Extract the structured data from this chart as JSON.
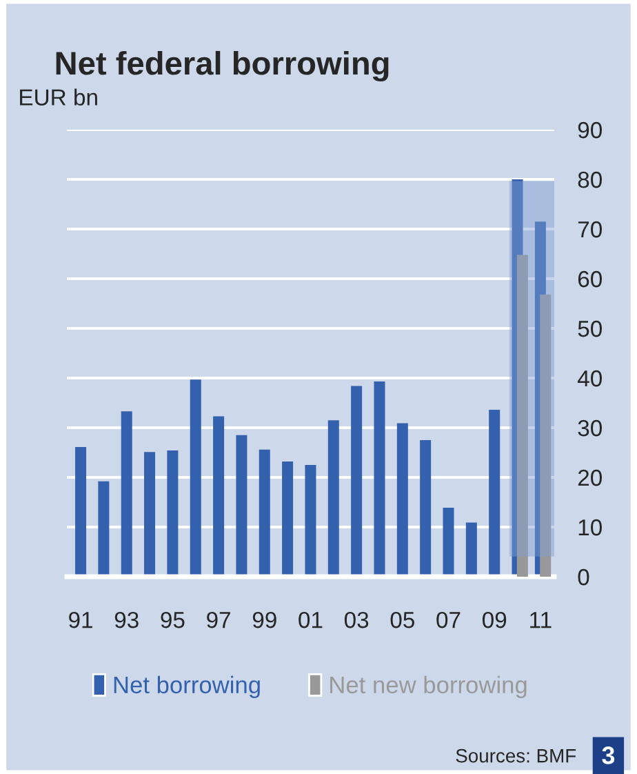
{
  "chart_data": {
    "type": "bar",
    "title": "Net federal borrowing",
    "ylabel": "EUR bn",
    "categories": [
      "91",
      null,
      "93",
      null,
      "95",
      null,
      "97",
      null,
      "99",
      null,
      "01",
      null,
      "03",
      null,
      "05",
      null,
      "07",
      null,
      "09",
      null,
      "11"
    ],
    "series": [
      {
        "name": "Net borrowing",
        "color": "#3461ad",
        "values": [
          26.1,
          19.2,
          33.3,
          25.1,
          25.4,
          39.7,
          32.3,
          28.5,
          25.6,
          23.2,
          22.5,
          31.5,
          38.4,
          39.3,
          30.9,
          27.5,
          13.9,
          10.9,
          33.6,
          80.0,
          71.5
        ]
      },
      {
        "name": "Net new borrowing",
        "color": "#999999",
        "values": [
          null,
          null,
          null,
          null,
          null,
          null,
          null,
          null,
          null,
          null,
          null,
          null,
          null,
          null,
          null,
          null,
          null,
          null,
          null,
          64.8,
          56.8
        ]
      }
    ],
    "ylim": [
      0,
      90
    ],
    "yticks": [
      0,
      10,
      20,
      30,
      40,
      50,
      60,
      70,
      80,
      90
    ],
    "grid": "y",
    "legend": "bottom",
    "annotations": [
      "Sources: BMF",
      "3"
    ]
  }
}
